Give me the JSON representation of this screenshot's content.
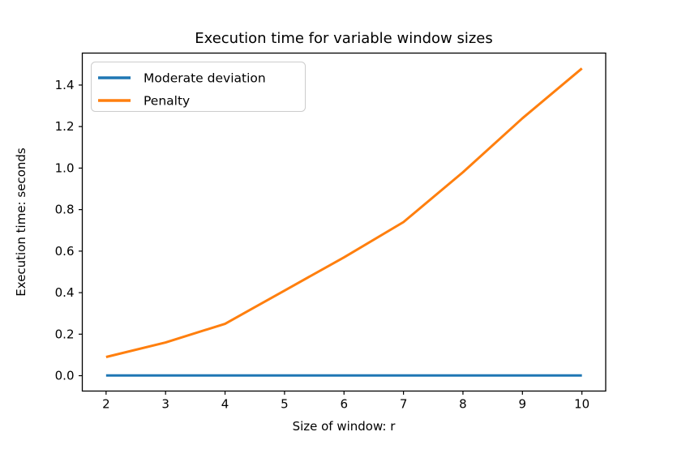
{
  "figure": {
    "background": "#ffffff",
    "spine_color": "#000000",
    "text_color": "#000000",
    "legend": {
      "border_color": "#cccccc",
      "background": "#ffffff",
      "position": "upper-left"
    }
  },
  "chart_data": {
    "type": "line",
    "title": "Execution time for variable window sizes",
    "xlabel": "Size of window: r",
    "ylabel": "Execution time: seconds",
    "x": [
      2,
      3,
      4,
      5,
      6,
      7,
      8,
      9,
      10
    ],
    "series": [
      {
        "name": "Moderate deviation",
        "color": "#1f77b4",
        "values": [
          0.001,
          0.001,
          0.001,
          0.001,
          0.001,
          0.001,
          0.001,
          0.001,
          0.001
        ]
      },
      {
        "name": "Penalty",
        "color": "#ff7f0e",
        "values": [
          0.09,
          0.16,
          0.25,
          0.41,
          0.57,
          0.74,
          0.98,
          1.24,
          1.48
        ]
      }
    ],
    "xlim": [
      1.6,
      10.4
    ],
    "ylim": [
      -0.074,
      1.554
    ],
    "xticks": {
      "values": [
        2,
        3,
        4,
        5,
        6,
        7,
        8,
        9,
        10
      ],
      "labels": [
        "2",
        "3",
        "4",
        "5",
        "6",
        "7",
        "8",
        "9",
        "10"
      ]
    },
    "yticks": {
      "values": [
        0,
        0.2,
        0.4,
        0.6,
        0.8,
        1.0,
        1.2,
        1.4
      ],
      "labels": [
        "0.0",
        "0.2",
        "0.4",
        "0.6",
        "0.8",
        "1.0",
        "1.2",
        "1.4"
      ]
    },
    "grid": false,
    "legend_position": "upper left",
    "line_width": 3
  }
}
